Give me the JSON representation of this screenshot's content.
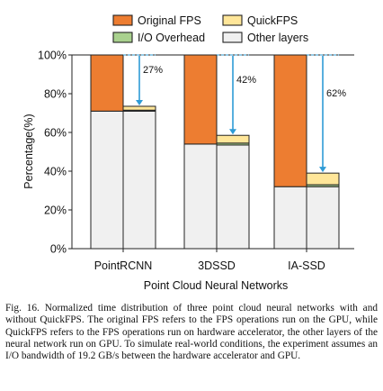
{
  "chart_data": {
    "type": "bar",
    "stacked": true,
    "xlabel": "Point Cloud Neural Networks",
    "ylabel": "Percentage(%)",
    "ylim": [
      0,
      100
    ],
    "yticks": [
      "0%",
      "20%",
      "40%",
      "60%",
      "80%",
      "100%"
    ],
    "categories": [
      "PointRCNN",
      "3DSSD",
      "IA-SSD"
    ],
    "series": [
      {
        "name": "Other layers",
        "color": "#f0f0f0",
        "original": [
          71,
          54,
          32
        ],
        "quickfps": [
          71,
          53.5,
          32
        ]
      },
      {
        "name": "I/O Overhead",
        "color": "#a9d18e",
        "original": [
          0,
          0,
          0
        ],
        "quickfps": [
          0.5,
          1,
          1
        ]
      },
      {
        "name": "QuickFPS",
        "color": "#ffe699",
        "original": [
          0,
          0,
          0
        ],
        "quickfps": [
          2,
          4,
          6
        ]
      },
      {
        "name": "Original FPS",
        "color": "#ed7d31",
        "original": [
          29,
          46,
          68
        ],
        "quickfps": [
          0,
          0,
          0
        ]
      }
    ],
    "legend": [
      "Original FPS",
      "QuickFPS",
      "I/O Overhead",
      "Other layers"
    ],
    "annotations": [
      "27%",
      "42%",
      "62%"
    ],
    "arrow_color": "#2e9bd6",
    "legend_position": "top"
  },
  "caption": "Fig. 16.   Normalized time distribution of three point cloud neural networks with and without QuickFPS. The original FPS refers to the FPS operations run on the GPU, while QuickFPS refers to the FPS operations run on hardware accelerator, the other layers of the neural network run on GPU. To simulate real-world conditions, the experiment assumes an I/O bandwidth of 19.2 GB/s between the hardware accelerator and GPU."
}
